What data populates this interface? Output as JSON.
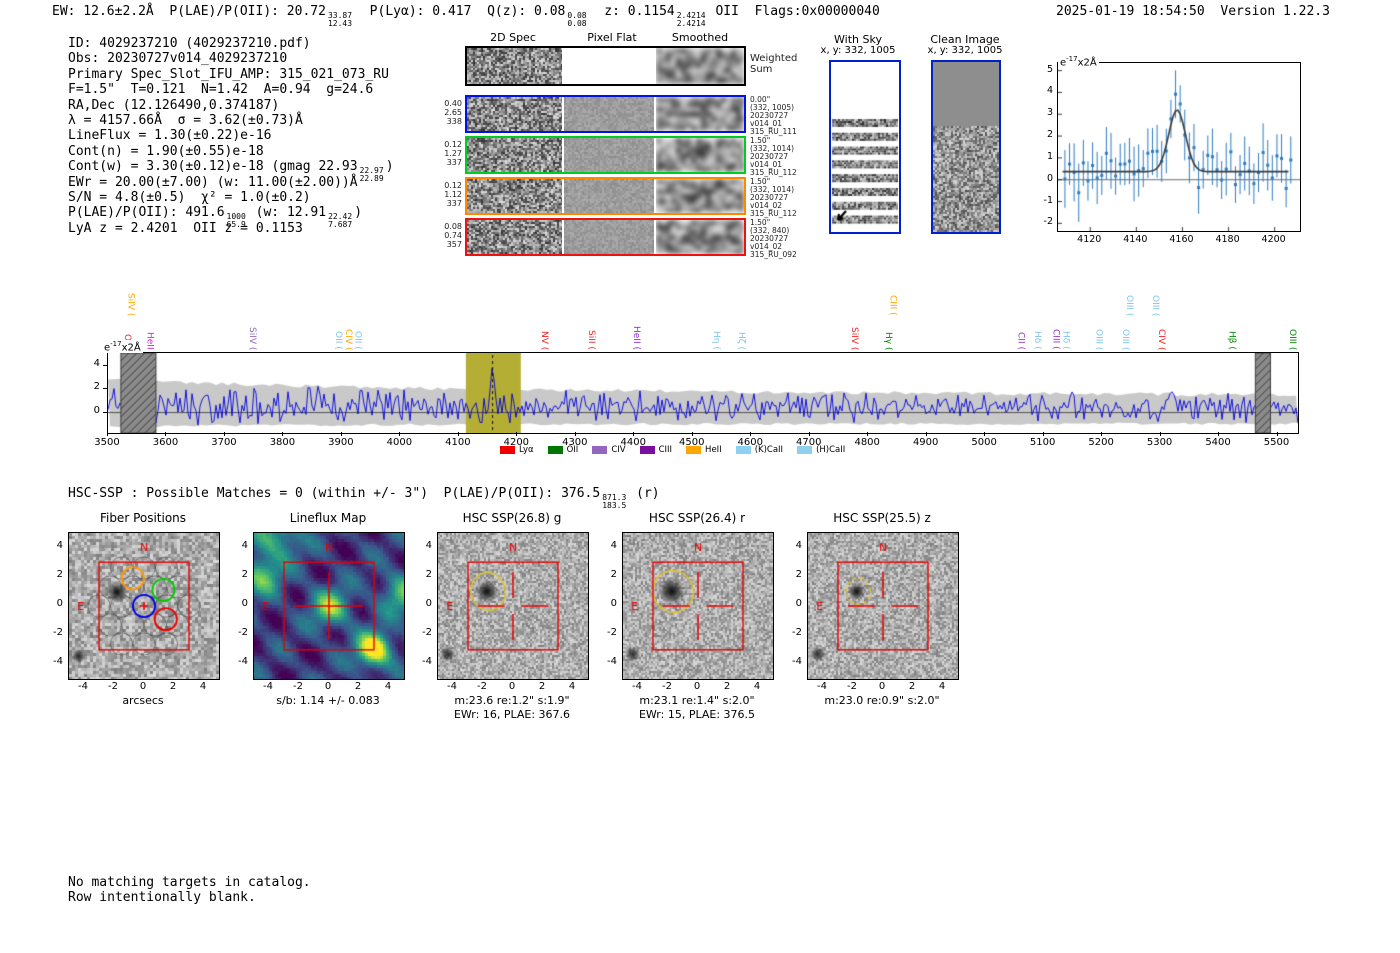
{
  "header": {
    "fragments": [
      {
        "t": "EW: 12.6±2.2Å  P(LAE)/P(OII): 20.72"
      },
      {
        "f": [
          "33.87",
          "12.43"
        ]
      },
      {
        "t": "  P(Lyα): 0.417  Q(z): 0.08"
      },
      {
        "f": [
          "0.08",
          "0.08"
        ]
      },
      {
        "t": "  z: 0.1154"
      },
      {
        "f": [
          "2.4214",
          "2.4214"
        ]
      },
      {
        "t": " OII  Flags:0x00000040"
      }
    ],
    "datetime": "2025-01-19 18:54:50",
    "version": "Version 1.22.3"
  },
  "info_lines": [
    [
      {
        "t": "ID: 4029237210 (4029237210.pdf)"
      }
    ],
    [
      {
        "t": "Obs: 20230727v014_4029237210"
      }
    ],
    [
      {
        "t": "Primary Spec_Slot_IFU_AMP: 315_021_073_RU"
      }
    ],
    [
      {
        "t": "F=1.5\"  T=0.121  N=1.42  A=0.94  g=24.6"
      }
    ],
    [
      {
        "t": "RA,Dec (12.126490,0.374187)"
      }
    ],
    [
      {
        "t": "λ = 4157.66Å  σ = 3.62(±0.73)Å"
      }
    ],
    [
      {
        "t": "LineFlux = 1.30(±0.22)e-16"
      }
    ],
    [
      {
        "t": "Cont(n) = 1.90(±0.55)e-18"
      }
    ],
    [
      {
        "t": "Cont(w) = 3.30(±0.12)e-18 (gmag 22.93"
      },
      {
        "f": [
          "22.97",
          "22.89"
        ]
      },
      {
        "t": ")"
      }
    ],
    [
      {
        "t": "EWr = 20.00(±7.00) (w: 11.00(±2.00))Å"
      }
    ],
    [
      {
        "t": "S/N = 4.8(±0.5)  χ² = 1.0(±0.2)"
      }
    ],
    [
      {
        "t": "P(LAE)/P(OII): 491.6"
      },
      {
        "f": [
          "1000",
          "65.9"
        ]
      },
      {
        "t": " (w: 12.91"
      },
      {
        "f": [
          "22.42",
          "7.687"
        ]
      },
      {
        "t": ")"
      }
    ],
    [
      {
        "t": "LyA z = 2.4201  OII z = 0.1153"
      }
    ]
  ],
  "spec2d": {
    "col_headers": [
      "2D Spec",
      "Pixel Flat",
      "Smoothed"
    ],
    "rows": [
      {
        "border": "#000000",
        "left": [],
        "right": [
          "Weighted",
          "Sum"
        ],
        "panels": [
          "noise",
          "white",
          "smooth"
        ]
      },
      {
        "border": "#0011ee",
        "left": [
          "0.40",
          "2.65",
          "338"
        ],
        "right": [
          "0.00\"",
          "(332, 1005)",
          "20230727",
          "v014_01",
          "315_RU_111"
        ],
        "panels": [
          "noise",
          "flat",
          "smooth"
        ]
      },
      {
        "border": "#00cc22",
        "left": [
          "0.12",
          "1.27",
          "337"
        ],
        "right": [
          "1.50\"",
          "(332, 1014)",
          "20230727",
          "v014_01",
          "315_RU_112"
        ],
        "panels": [
          "noise",
          "flat",
          "smooth"
        ]
      },
      {
        "border": "#ff8800",
        "left": [
          "0.12",
          "1.12",
          "337"
        ],
        "right": [
          "1.50\"",
          "(332, 1014)",
          "20230727",
          "v014_02",
          "315_RU_112"
        ],
        "panels": [
          "noise",
          "flat",
          "smooth"
        ]
      },
      {
        "border": "#ee1111",
        "left": [
          "0.08",
          "0.74",
          "357"
        ],
        "right": [
          "1.50\"",
          "(332, 840)",
          "20230727",
          "v014_02",
          "315_RU_092"
        ],
        "panels": [
          "noise",
          "flat",
          "smooth"
        ]
      }
    ]
  },
  "sky_panels": [
    {
      "title": "With Sky",
      "subtitle": "x, y: 332, 1005",
      "type": "withsky"
    },
    {
      "title": "Clean Image",
      "subtitle": "x, y: 332, 1005",
      "type": "clean"
    }
  ],
  "hsc_line": {
    "fragments": [
      {
        "t": "HSC-SSP : Possible Matches = 0 (within +/- 3\")  P(LAE)/P(OII): 376.5"
      },
      {
        "f": [
          "871.3",
          "183.5"
        ]
      },
      {
        "t": " (r)"
      }
    ]
  },
  "footer_lines": [
    "No matching targets in catalog.",
    "Row intentionally blank."
  ],
  "panels": {
    "ticks": [
      -4,
      -2,
      0,
      2,
      4
    ],
    "compass": {
      "n": "N",
      "e": "E"
    },
    "items": [
      {
        "title": "Fiber Positions",
        "xlabel": "arcsecs",
        "caption": "",
        "type": "fiber"
      },
      {
        "title": "Lineflux Map",
        "xlabel": "s/b: 1.14 +/- 0.083",
        "caption": "",
        "type": "lineflux"
      },
      {
        "title": "HSC SSP(26.8) g",
        "xlabel": "m:23.6  re:1.2\"  s:1.9\"",
        "caption": "EWr: 16, PLAE: 367.6",
        "type": "hsc",
        "ellipse": "solid",
        "blob_r": 0.8
      },
      {
        "title": "HSC SSP(26.4) r",
        "xlabel": "m:23.1  re:1.4\"  s:2.0\"",
        "caption": "EWr: 15, PLAE: 376.5",
        "type": "hsc",
        "ellipse": "solid",
        "blob_r": 0.95
      },
      {
        "title": "HSC SSP(25.5) z",
        "xlabel": "m:23.0  re:0.9\"  s:2.0\"",
        "caption": "",
        "type": "hsc",
        "ellipse": "dashed",
        "blob_r": 0.6
      }
    ]
  },
  "chart_data": [
    {
      "id": "line_fit_inset",
      "type": "scatter",
      "title": "",
      "ylabel": {
        "base": "e",
        "sup": "-17",
        "rest": "x2Å"
      },
      "xlim": [
        4106,
        4211
      ],
      "ylim": [
        -2.35,
        5.35
      ],
      "xticks": [
        4120,
        4140,
        4160,
        4180,
        4200
      ],
      "yticks": [
        -2,
        -1,
        0,
        1,
        2,
        3,
        4,
        5
      ],
      "grid": false,
      "fit": {
        "shape": "gaussian",
        "center": 4157.66,
        "sigma": 3.62,
        "peak": 3.2,
        "baseline": 0.37
      },
      "points_description": "noisy errorbar flux values sampled every ~2Å from 4108-4207, scatter ±1 about baseline 0.37, rising to ~4.1 at line center 4157.66Å, error bars ±~1",
      "colors": {
        "marker": "#2f7cc0",
        "fit": "#3a3a3a"
      }
    },
    {
      "id": "full_spectrum",
      "type": "line",
      "title": "",
      "ylabel": {
        "base": "e",
        "sup": "-17",
        "rest": "x2Å"
      },
      "xlim": [
        3500,
        5535
      ],
      "ylim": [
        -1.75,
        5.1
      ],
      "xticks": [
        3500,
        3600,
        3700,
        3800,
        3900,
        4000,
        4100,
        4200,
        4300,
        4400,
        4500,
        4600,
        4700,
        4800,
        4900,
        5000,
        5100,
        5200,
        5300,
        5400,
        5500
      ],
      "yticks": [
        0,
        2,
        4
      ],
      "grid": false,
      "detection_wavelength": 4157.66,
      "peak": {
        "x": 4157.66,
        "height": 4.2
      },
      "highlight_band": [
        4112,
        4206
      ],
      "masked_bands": [
        [
          3522,
          3582
        ],
        [
          5462,
          5488
        ]
      ],
      "series": [
        {
          "name": "spectrum",
          "color": "#0000dd",
          "description": "noisy flux ±~1.3 about 0.5 with emission peak at 4157.66Å"
        },
        {
          "name": "noise envelope",
          "color": "#c9c9c9",
          "description": "gray band ~-1 to ~+2.8, wider at blue end"
        }
      ],
      "line_labels_upper": [
        {
          "t": "SiIV (",
          "x": 3542,
          "c": "#ffa500"
        },
        {
          "t": "CIII (",
          "x": 4845,
          "c": "#ffa500"
        },
        {
          "t": "OIII (",
          "x": 5249,
          "c": "#7fc4e8"
        },
        {
          "t": "OIII (",
          "x": 5294,
          "c": "#7fc4e8"
        }
      ],
      "line_labels": [
        {
          "t": "OVI",
          "x": 3536,
          "c": "#ee2222"
        },
        {
          "t": "HeII",
          "x": 3574,
          "c": "#cc22cc"
        },
        {
          "t": "SiIV (",
          "x": 3750,
          "c": "#9467bd"
        },
        {
          "t": "OII (",
          "x": 3897,
          "c": "#7fc4e8"
        },
        {
          "t": "CIV (",
          "x": 3914,
          "c": "#ffa500"
        },
        {
          "t": "OII (",
          "x": 3930,
          "c": "#7fc4e8"
        },
        {
          "t": "NV (",
          "x": 4249,
          "c": "#ee2222"
        },
        {
          "t": "SiII (",
          "x": 4329,
          "c": "#ee2222"
        },
        {
          "t": "HeII (",
          "x": 4406,
          "c": "#8a2be2"
        },
        {
          "t": "Hη (",
          "x": 4543,
          "c": "#7fc4e8"
        },
        {
          "t": "Hζ (",
          "x": 4586,
          "c": "#7fc4e8"
        },
        {
          "t": "SiIV (",
          "x": 4779,
          "c": "#ee2222"
        },
        {
          "t": "Hγ (",
          "x": 4837,
          "c": "#008800"
        },
        {
          "t": "CII (",
          "x": 5064,
          "c": "#9932cc"
        },
        {
          "t": "Hδ (",
          "x": 5092,
          "c": "#7fc4e8"
        },
        {
          "t": "CIII (",
          "x": 5124,
          "c": "#9932cc"
        },
        {
          "t": "Hδ (",
          "x": 5141,
          "c": "#7fc4e8"
        },
        {
          "t": "OIII (",
          "x": 5197,
          "c": "#7fc4e8"
        },
        {
          "t": "OIII (",
          "x": 5243,
          "c": "#7fc4e8"
        },
        {
          "t": "CIV (",
          "x": 5304,
          "c": "#ee2222"
        },
        {
          "t": "Hβ (",
          "x": 5425,
          "c": "#008800"
        },
        {
          "t": "OIII (",
          "x": 5528,
          "c": "#008800"
        }
      ],
      "legend": [
        {
          "label": "Lyα",
          "color": "#ee0000"
        },
        {
          "label": "OII",
          "color": "#007700"
        },
        {
          "label": "CIV",
          "color": "#9467bd"
        },
        {
          "label": "CIII",
          "color": "#7a0f9e"
        },
        {
          "label": "HeII",
          "color": "#ffa500"
        },
        {
          "label": "(K)CaII",
          "color": "#8fd0f0"
        },
        {
          "label": "(H)CaII",
          "color": "#8fd0f0"
        }
      ],
      "legend_position": "below-axis"
    }
  ],
  "colors": {
    "panel_border_blue": "#0022cc",
    "box_red": "#e60000",
    "ellipse_yellow": "#dfc22a",
    "band_olive": "#b5ae35",
    "mask_gray": "#8a8a8a"
  }
}
